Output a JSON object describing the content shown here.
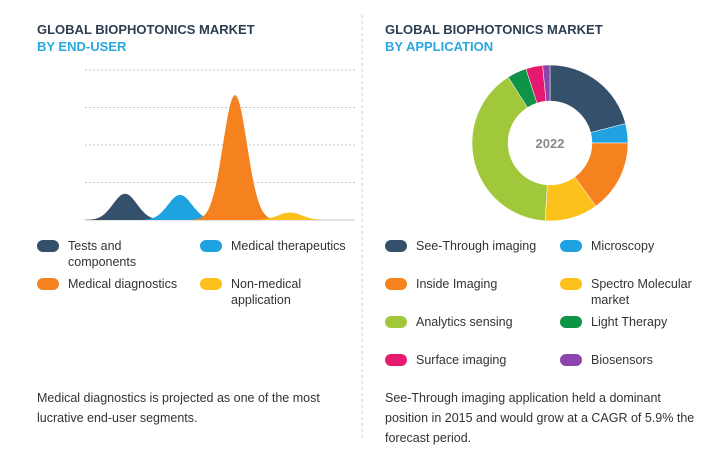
{
  "charts": [
    {
      "type": "peak",
      "title": "GLOBAL BIOPHOTONICS MARKET",
      "subtitle": "BY END-USER",
      "categories": [
        "Tests and components",
        "Medical therapeutics",
        "Medical diagnostics",
        "Non-medical application"
      ],
      "values": [
        0.7,
        0.67,
        3.33,
        0.2
      ],
      "colors": [
        "#34506b",
        "#1fa3e0",
        "#f5821f",
        "#fcc11b"
      ],
      "ylim": [
        0,
        4
      ],
      "yticks": [
        0,
        1,
        2,
        3,
        4
      ],
      "grid": true,
      "note": "Medical diagnostics  is projected as one of the most lucrative end-user segments."
    },
    {
      "type": "donut",
      "title": "GLOBAL BIOPHOTONICS MARKET",
      "subtitle": "BY APPLICATION",
      "center_label": "2022",
      "categories": [
        "See-Through imaging",
        "Microscopy",
        "Inside Imaging",
        "Spectro Molecular market",
        "Analytics sensing",
        "Light Therapy",
        "Surface imaging",
        "Biosensors"
      ],
      "values": [
        21,
        4,
        15,
        11,
        40,
        4,
        3.5,
        1.5
      ],
      "colors": [
        "#34506b",
        "#1fa3e0",
        "#f5821f",
        "#fcc11b",
        "#a1c83b",
        "#0f9447",
        "#e7186f",
        "#8e44ad"
      ],
      "note": "See-Through imaging application  held a dominant position in 2015 and would grow at a CAGR of 5.9% the forecast period."
    }
  ]
}
